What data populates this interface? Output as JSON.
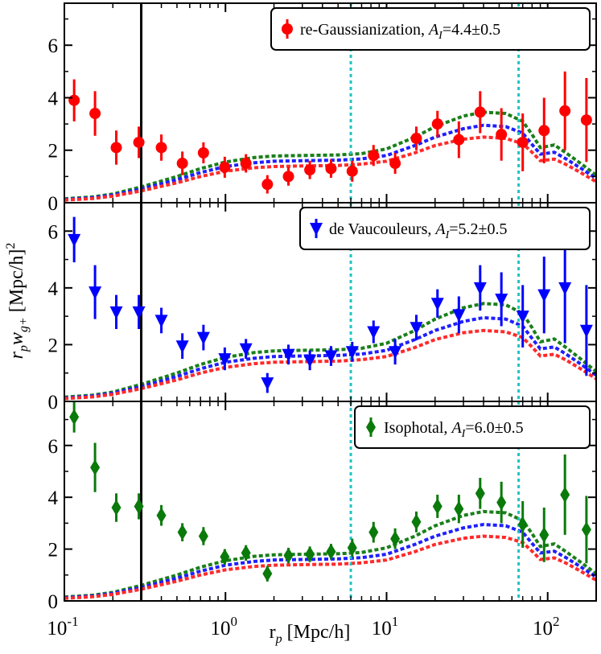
{
  "chart_data": {
    "type": "scatter",
    "xscale": "log",
    "xlim": [
      0.1,
      200
    ],
    "xlabel": "r_p [Mpc/h]",
    "ylabel": "r_p w_{g+} [Mpc/h]^2",
    "x_tick_labels": [
      "10^-1",
      "10^0",
      "10^1",
      "10^2"
    ],
    "x_tick_values": [
      0.1,
      1,
      10,
      100
    ],
    "vertical_lines": [
      {
        "x": 0.3,
        "color": "#000000",
        "style": "solid"
      },
      {
        "x": 6,
        "color": "#22c3c3",
        "style": "dotted"
      },
      {
        "x": 66,
        "color": "#22c3c3",
        "style": "dotted"
      }
    ],
    "model_curves": {
      "x": [
        0.1,
        0.15,
        0.2,
        0.3,
        0.5,
        0.7,
        1.0,
        1.5,
        2.0,
        3.0,
        5.0,
        7.0,
        10,
        15,
        20,
        30,
        40,
        55,
        70,
        80,
        90,
        110,
        130,
        160,
        200
      ],
      "series": [
        {
          "name": "green",
          "color": "#1a7f1a",
          "values": [
            0.15,
            0.22,
            0.33,
            0.6,
            1.0,
            1.3,
            1.55,
            1.72,
            1.78,
            1.8,
            1.82,
            1.87,
            2.05,
            2.5,
            2.9,
            3.3,
            3.45,
            3.4,
            3.1,
            2.6,
            2.1,
            2.2,
            1.9,
            1.5,
            1.05
          ]
        },
        {
          "name": "blue",
          "color": "#1f1fff",
          "values": [
            0.12,
            0.19,
            0.29,
            0.52,
            0.88,
            1.15,
            1.38,
            1.52,
            1.58,
            1.6,
            1.62,
            1.67,
            1.8,
            2.18,
            2.5,
            2.82,
            2.95,
            2.9,
            2.65,
            2.22,
            1.85,
            1.92,
            1.67,
            1.32,
            0.92
          ]
        },
        {
          "name": "red",
          "color": "#ff2a2a",
          "values": [
            0.1,
            0.16,
            0.25,
            0.45,
            0.76,
            1.0,
            1.2,
            1.33,
            1.38,
            1.4,
            1.42,
            1.47,
            1.58,
            1.9,
            2.18,
            2.42,
            2.5,
            2.45,
            2.25,
            1.92,
            1.6,
            1.66,
            1.46,
            1.15,
            0.8
          ]
        }
      ]
    },
    "panels": [
      {
        "name": "re-Gaussianization",
        "legend": "re-Gaussianization, ",
        "amp_symbol": "A",
        "amp_sub": "I",
        "amp_value": "=4.4±0.5",
        "marker": "circle",
        "color": "#ff0000",
        "ylim": [
          0,
          7.6
        ],
        "yticks": [
          0,
          2,
          4,
          6
        ],
        "points": [
          {
            "x": 0.115,
            "y": 3.9,
            "err": 0.8
          },
          {
            "x": 0.155,
            "y": 3.4,
            "err": 0.85
          },
          {
            "x": 0.21,
            "y": 2.1,
            "err": 0.65
          },
          {
            "x": 0.29,
            "y": 2.3,
            "err": 0.6
          },
          {
            "x": 0.4,
            "y": 2.1,
            "err": 0.5
          },
          {
            "x": 0.54,
            "y": 1.5,
            "err": 0.45
          },
          {
            "x": 0.73,
            "y": 1.9,
            "err": 0.4
          },
          {
            "x": 0.99,
            "y": 1.35,
            "err": 0.4
          },
          {
            "x": 1.34,
            "y": 1.5,
            "err": 0.35
          },
          {
            "x": 1.82,
            "y": 0.7,
            "err": 0.35
          },
          {
            "x": 2.46,
            "y": 1.0,
            "err": 0.35
          },
          {
            "x": 3.34,
            "y": 1.25,
            "err": 0.35
          },
          {
            "x": 4.52,
            "y": 1.3,
            "err": 0.35
          },
          {
            "x": 6.12,
            "y": 1.2,
            "err": 0.4
          },
          {
            "x": 8.3,
            "y": 1.8,
            "err": 0.4
          },
          {
            "x": 11.3,
            "y": 1.5,
            "err": 0.4
          },
          {
            "x": 15.3,
            "y": 2.45,
            "err": 0.45
          },
          {
            "x": 20.7,
            "y": 3.0,
            "err": 0.5
          },
          {
            "x": 28.1,
            "y": 2.4,
            "err": 0.7
          },
          {
            "x": 38.1,
            "y": 3.45,
            "err": 0.8
          },
          {
            "x": 51.6,
            "y": 2.6,
            "err": 1.0
          },
          {
            "x": 70.0,
            "y": 2.3,
            "err": 1.1
          },
          {
            "x": 95.0,
            "y": 2.75,
            "err": 1.25
          },
          {
            "x": 128,
            "y": 3.5,
            "err": 1.5
          },
          {
            "x": 174,
            "y": 3.15,
            "err": 1.6
          }
        ]
      },
      {
        "name": "de Vaucouleurs",
        "legend": "de Vaucouleurs, ",
        "amp_symbol": "A",
        "amp_sub": "I",
        "amp_value": "=5.2±0.5",
        "marker": "triangle-down",
        "color": "#0000ff",
        "ylim": [
          0,
          7.0
        ],
        "yticks": [
          0,
          2,
          4,
          6
        ],
        "points": [
          {
            "x": 0.115,
            "y": 5.7,
            "err": 0.8
          },
          {
            "x": 0.155,
            "y": 3.85,
            "err": 0.95
          },
          {
            "x": 0.21,
            "y": 3.15,
            "err": 0.6
          },
          {
            "x": 0.29,
            "y": 3.15,
            "err": 0.6
          },
          {
            "x": 0.4,
            "y": 2.85,
            "err": 0.45
          },
          {
            "x": 0.54,
            "y": 1.95,
            "err": 0.45
          },
          {
            "x": 0.73,
            "y": 2.25,
            "err": 0.45
          },
          {
            "x": 0.99,
            "y": 1.5,
            "err": 0.4
          },
          {
            "x": 1.34,
            "y": 1.85,
            "err": 0.35
          },
          {
            "x": 1.82,
            "y": 0.65,
            "err": 0.35
          },
          {
            "x": 2.46,
            "y": 1.65,
            "err": 0.35
          },
          {
            "x": 3.34,
            "y": 1.45,
            "err": 0.35
          },
          {
            "x": 4.52,
            "y": 1.6,
            "err": 0.35
          },
          {
            "x": 6.12,
            "y": 1.75,
            "err": 0.35
          },
          {
            "x": 8.3,
            "y": 2.45,
            "err": 0.4
          },
          {
            "x": 11.3,
            "y": 1.75,
            "err": 0.45
          },
          {
            "x": 15.3,
            "y": 2.6,
            "err": 0.45
          },
          {
            "x": 20.7,
            "y": 3.45,
            "err": 0.5
          },
          {
            "x": 28.1,
            "y": 3.05,
            "err": 0.65
          },
          {
            "x": 38.1,
            "y": 4.0,
            "err": 0.8
          },
          {
            "x": 51.6,
            "y": 3.6,
            "err": 0.95
          },
          {
            "x": 70.0,
            "y": 3.0,
            "err": 1.1
          },
          {
            "x": 95.0,
            "y": 3.75,
            "err": 1.35
          },
          {
            "x": 128,
            "y": 4.0,
            "err": 1.95
          },
          {
            "x": 174,
            "y": 2.5,
            "err": 1.6
          }
        ]
      },
      {
        "name": "Isophotal",
        "legend": "Isophotal, ",
        "amp_symbol": "A",
        "amp_sub": "I",
        "amp_value": "=6.0±0.5",
        "marker": "diamond",
        "color": "#0a7a0a",
        "ylim": [
          0,
          7.7
        ],
        "yticks": [
          0,
          2,
          4,
          6
        ],
        "points": [
          {
            "x": 0.115,
            "y": 7.1,
            "err": 0.6
          },
          {
            "x": 0.155,
            "y": 5.15,
            "err": 0.95
          },
          {
            "x": 0.21,
            "y": 3.6,
            "err": 0.55
          },
          {
            "x": 0.29,
            "y": 3.65,
            "err": 0.5
          },
          {
            "x": 0.4,
            "y": 3.3,
            "err": 0.4
          },
          {
            "x": 0.54,
            "y": 2.65,
            "err": 0.35
          },
          {
            "x": 0.73,
            "y": 2.5,
            "err": 0.35
          },
          {
            "x": 0.99,
            "y": 1.7,
            "err": 0.3
          },
          {
            "x": 1.34,
            "y": 1.85,
            "err": 0.3
          },
          {
            "x": 1.82,
            "y": 1.05,
            "err": 0.3
          },
          {
            "x": 2.46,
            "y": 1.75,
            "err": 0.3
          },
          {
            "x": 3.34,
            "y": 1.8,
            "err": 0.3
          },
          {
            "x": 4.52,
            "y": 1.9,
            "err": 0.3
          },
          {
            "x": 6.12,
            "y": 2.05,
            "err": 0.35
          },
          {
            "x": 8.3,
            "y": 2.65,
            "err": 0.4
          },
          {
            "x": 11.3,
            "y": 2.4,
            "err": 0.4
          },
          {
            "x": 15.3,
            "y": 3.05,
            "err": 0.4
          },
          {
            "x": 20.7,
            "y": 3.65,
            "err": 0.45
          },
          {
            "x": 28.1,
            "y": 3.55,
            "err": 0.55
          },
          {
            "x": 38.1,
            "y": 4.15,
            "err": 0.6
          },
          {
            "x": 51.6,
            "y": 3.8,
            "err": 0.8
          },
          {
            "x": 70.0,
            "y": 2.95,
            "err": 0.9
          },
          {
            "x": 95.0,
            "y": 2.55,
            "err": 1.05
          },
          {
            "x": 128,
            "y": 4.1,
            "err": 1.55
          },
          {
            "x": 174,
            "y": 2.75,
            "err": 1.3
          }
        ]
      }
    ]
  }
}
